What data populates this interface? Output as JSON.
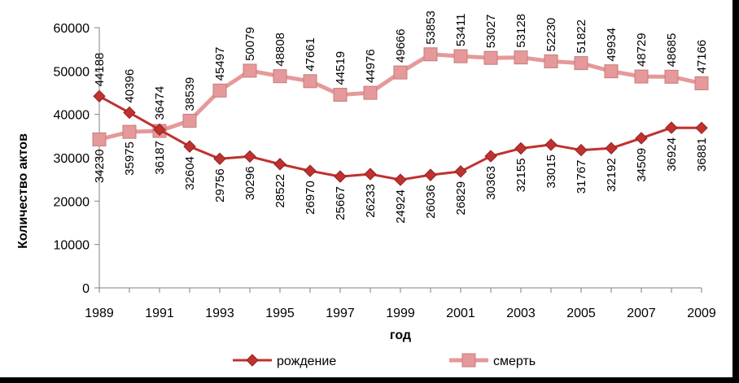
{
  "chart_data": {
    "type": "line",
    "xlabel": "год",
    "ylabel": "Количество актов",
    "ylim": [
      0,
      60000
    ],
    "yticks": [
      0,
      10000,
      20000,
      30000,
      40000,
      50000,
      60000
    ],
    "xtick_labels": [
      "1989",
      "1991",
      "1993",
      "1995",
      "1997",
      "1999",
      "2001",
      "2003",
      "2005",
      "2007",
      "2009"
    ],
    "x": [
      1989,
      1990,
      1991,
      1992,
      1993,
      1994,
      1995,
      1996,
      1997,
      1998,
      1999,
      2000,
      2001,
      2002,
      2003,
      2004,
      2005,
      2006,
      2007,
      2008,
      2009
    ],
    "grid": false,
    "legend_position": "bottom",
    "series": [
      {
        "name": "рождение",
        "color": "#c0312f",
        "marker": "diamond",
        "values": [
          44188,
          40396,
          36474,
          32604,
          29756,
          30296,
          28522,
          26970,
          25667,
          26233,
          24924,
          26036,
          26829,
          30363,
          32155,
          33015,
          31767,
          32192,
          34509,
          36924,
          36881
        ]
      },
      {
        "name": "смерть",
        "color": "#e6999a",
        "marker": "square",
        "values": [
          34230,
          35975,
          36187,
          38539,
          45497,
          50079,
          48808,
          47661,
          44519,
          44976,
          49666,
          53853,
          53411,
          53027,
          53128,
          52230,
          51822,
          49934,
          48729,
          48685,
          47166
        ]
      }
    ]
  }
}
